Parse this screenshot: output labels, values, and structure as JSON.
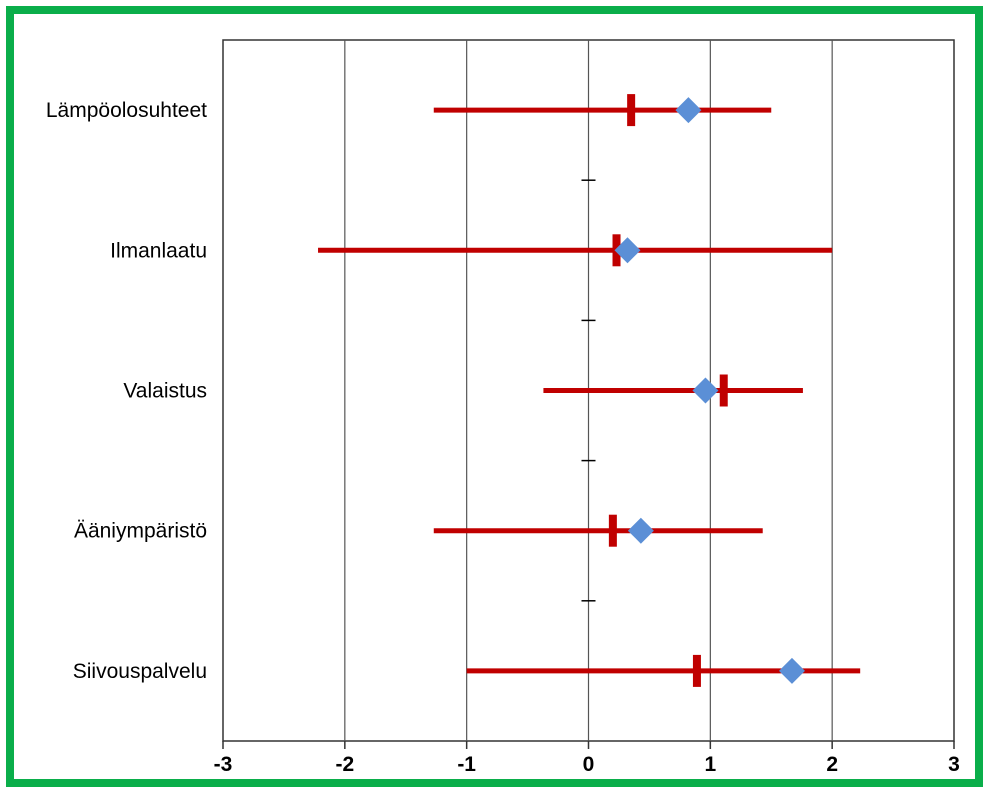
{
  "colors": {
    "frame": "#0aae4a",
    "range": "#c00000",
    "median": "#c00000",
    "mean": "#5b8fd6",
    "grid": "#555555",
    "axis": "#333333"
  },
  "chart_data": {
    "type": "range",
    "categories": [
      "Lämpöolosuhteet",
      "Ilmanlaatu",
      "Valaistus",
      "Ääniympäristö",
      "Siivouspalvelu"
    ],
    "series": [
      {
        "values": [
          [
            -1.27,
            1.5
          ],
          [
            -2.22,
            2.0
          ],
          [
            -0.37,
            1.76
          ],
          [
            -1.27,
            1.43
          ],
          [
            -1.0,
            2.23
          ]
        ]
      },
      {
        "values": [
          0.35,
          0.23,
          1.11,
          0.2,
          0.89
        ]
      },
      {
        "values": [
          0.82,
          0.32,
          0.96,
          0.43,
          1.67
        ]
      }
    ],
    "xlim": [
      -3,
      3
    ],
    "xticks": [
      "-3",
      "-2",
      "-1",
      "0",
      "1",
      "2",
      "3"
    ],
    "grid": true,
    "legend": "none"
  }
}
